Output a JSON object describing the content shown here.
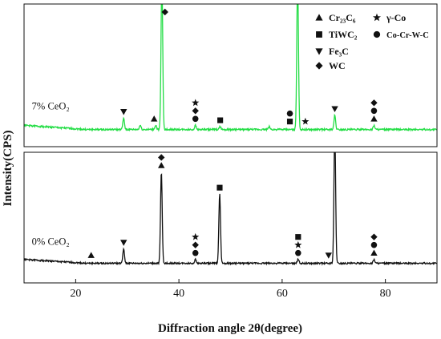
{
  "chart_data": [
    {
      "type": "line",
      "title": "",
      "xlabel": "Diffraction angle 2θ(degree)",
      "ylabel": "Intensity(CPS)",
      "xlim": [
        10,
        90
      ],
      "x_ticks": [
        20,
        40,
        60,
        80
      ],
      "ylim": [
        0,
        100
      ],
      "grid": false,
      "legend_position": "top-right",
      "legend": [
        {
          "marker": "triangle-up",
          "label": "Cr₂₃C₆"
        },
        {
          "marker": "square",
          "label": "TiWC₂"
        },
        {
          "marker": "triangle-down",
          "label": "Fe₃C"
        },
        {
          "marker": "diamond",
          "label": "WC"
        },
        {
          "marker": "star",
          "label": "γ-Co"
        },
        {
          "marker": "circle",
          "label": "Co-Cr-W-C"
        }
      ],
      "series": [
        {
          "name": "7% CeO₂",
          "color": "#22dd44",
          "baseline": 12,
          "peaks": [
            {
              "x": 29.3,
              "y": 20
            },
            {
              "x": 32.5,
              "y": 15
            },
            {
              "x": 35.5,
              "y": 15
            },
            {
              "x": 36.7,
              "y": 118
            },
            {
              "x": 43.2,
              "y": 15
            },
            {
              "x": 48.0,
              "y": 14
            },
            {
              "x": 57.5,
              "y": 14
            },
            {
              "x": 63.0,
              "y": 118
            },
            {
              "x": 70.2,
              "y": 22
            },
            {
              "x": 77.8,
              "y": 15
            }
          ]
        },
        {
          "name": "0% CeO₂",
          "color": "#111111",
          "baseline": 15,
          "peaks": [
            {
              "x": 29.3,
              "y": 26
            },
            {
              "x": 36.6,
              "y": 85
            },
            {
              "x": 43.2,
              "y": 18
            },
            {
              "x": 47.9,
              "y": 68
            },
            {
              "x": 63.1,
              "y": 18
            },
            {
              "x": 70.2,
              "y": 118
            },
            {
              "x": 77.8,
              "y": 18
            }
          ]
        }
      ],
      "annotations": [
        {
          "series": "7% CeO₂",
          "x": 29.3,
          "markers": [
            "triangle-down"
          ]
        },
        {
          "series": "7% CeO₂",
          "x": 35.2,
          "markers": [
            "triangle-up"
          ]
        },
        {
          "series": "7% CeO₂",
          "x": 37.3,
          "markers": [
            "diamond"
          ]
        },
        {
          "series": "7% CeO₂",
          "x": 43.2,
          "markers": [
            "star",
            "diamond",
            "circle"
          ]
        },
        {
          "series": "7% CeO₂",
          "x": 48.0,
          "markers": [
            "square"
          ]
        },
        {
          "series": "7% CeO₂",
          "x": 61.5,
          "markers": [
            "circle",
            "square"
          ]
        },
        {
          "series": "7% CeO₂",
          "x": 64.5,
          "markers": [
            "star"
          ]
        },
        {
          "series": "7% CeO₂",
          "x": 70.2,
          "markers": [
            "triangle-down"
          ]
        },
        {
          "series": "7% CeO₂",
          "x": 77.8,
          "markers": [
            "diamond",
            "circle",
            "triangle-up"
          ]
        },
        {
          "series": "0% CeO₂",
          "x": 23.0,
          "markers": [
            "triangle-up"
          ]
        },
        {
          "series": "0% CeO₂",
          "x": 29.3,
          "markers": [
            "triangle-down"
          ]
        },
        {
          "series": "0% CeO₂",
          "x": 36.6,
          "markers": [
            "diamond",
            "triangle-up"
          ]
        },
        {
          "series": "0% CeO₂",
          "x": 43.2,
          "markers": [
            "star",
            "diamond",
            "circle"
          ]
        },
        {
          "series": "0% CeO₂",
          "x": 47.9,
          "markers": [
            "square"
          ]
        },
        {
          "series": "0% CeO₂",
          "x": 63.1,
          "markers": [
            "square",
            "star",
            "circle"
          ]
        },
        {
          "series": "0% CeO₂",
          "x": 69.0,
          "markers": [
            "triangle-down"
          ]
        },
        {
          "series": "0% CeO₂",
          "x": 77.8,
          "markers": [
            "diamond",
            "circle",
            "triangle-up"
          ]
        }
      ]
    }
  ]
}
